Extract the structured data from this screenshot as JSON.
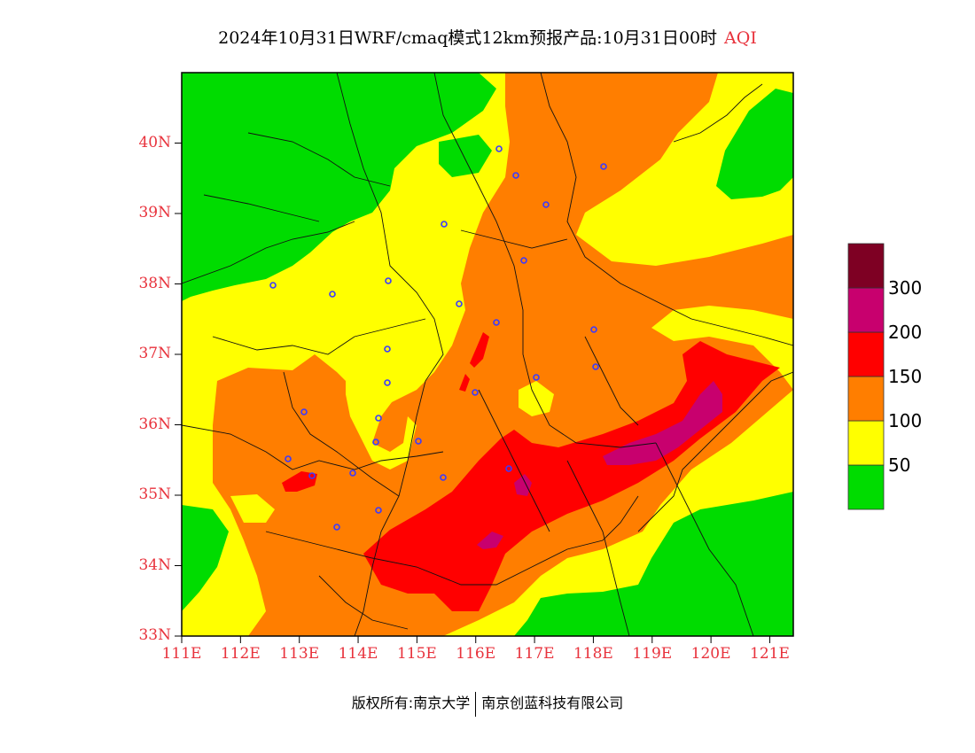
{
  "header": {
    "title": "2024年10月31日WRF/cmaq模式12km预报产品:10月31日00时",
    "product": "AQI"
  },
  "footer": {
    "copyright_label": "版权所有:",
    "owner1": "南京大学",
    "owner2": "南京创蓝科技有限公司"
  },
  "legend": {
    "levels": [
      {
        "label": "",
        "color": "#00dc00"
      },
      {
        "label": "50",
        "color": "#ffff00"
      },
      {
        "label": "100",
        "color": "#ff7e00"
      },
      {
        "label": "150",
        "color": "#ff0000"
      },
      {
        "label": "200",
        "color": "#c8006e"
      },
      {
        "label": "300",
        "color": "#7e0023"
      }
    ]
  },
  "axes": {
    "lat_ticks": [
      {
        "value": 40,
        "label": "40N"
      },
      {
        "value": 39,
        "label": "39N"
      },
      {
        "value": 38,
        "label": "38N"
      },
      {
        "value": 37,
        "label": "37N"
      },
      {
        "value": 36,
        "label": "36N"
      },
      {
        "value": 35,
        "label": "35N"
      },
      {
        "value": 34,
        "label": "34N"
      },
      {
        "value": 33,
        "label": "33N"
      }
    ],
    "lon_ticks": [
      {
        "value": 111,
        "label": "111E"
      },
      {
        "value": 112,
        "label": "112E"
      },
      {
        "value": 113,
        "label": "113E"
      },
      {
        "value": 114,
        "label": "114E"
      },
      {
        "value": 115,
        "label": "115E"
      },
      {
        "value": 116,
        "label": "116E"
      },
      {
        "value": 117,
        "label": "117E"
      },
      {
        "value": 118,
        "label": "118E"
      },
      {
        "value": 119,
        "label": "119E"
      },
      {
        "value": 120,
        "label": "120E"
      },
      {
        "value": 121,
        "label": "121E"
      }
    ],
    "lat_range": [
      33,
      41
    ],
    "lon_range": [
      111,
      121.4
    ]
  },
  "colors": {
    "good": "#00dc00",
    "moderate": "#ffff00",
    "usg": "#ff7e00",
    "unhealthy": "#ff0000",
    "very_unhealthy": "#c8006e",
    "hazardous": "#7e0023",
    "axis_label": "#e8323c",
    "station": "#3a3aff"
  }
}
